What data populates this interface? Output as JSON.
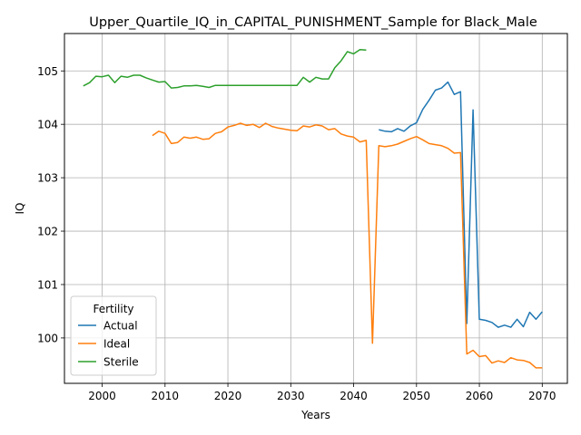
{
  "chart_data": {
    "type": "line",
    "title": "Upper_Quartile_IQ_in_CAPITAL_PUNISHMENT_Sample for Black_Male",
    "xlabel": "Years",
    "ylabel": "IQ",
    "xlim": [
      1994,
      2074
    ],
    "ylim": [
      99.15,
      105.7
    ],
    "xticks": [
      2000,
      2010,
      2020,
      2030,
      2040,
      2050,
      2060,
      2070
    ],
    "yticks": [
      100,
      101,
      102,
      103,
      104,
      105
    ],
    "grid": true,
    "legend": {
      "title": "Fertility",
      "position": "lower-left"
    },
    "series": [
      {
        "name": "Actual",
        "color": "#1f77b4",
        "x": [
          2044,
          2045,
          2046,
          2047,
          2048,
          2049,
          2050,
          2051,
          2052,
          2053,
          2054,
          2055,
          2056,
          2057,
          2058,
          2059,
          2060,
          2061,
          2062,
          2063,
          2064,
          2065,
          2066,
          2067,
          2068,
          2069,
          2070
        ],
        "y": [
          103.9,
          103.87,
          103.86,
          103.92,
          103.87,
          103.97,
          104.03,
          104.28,
          104.45,
          104.64,
          104.68,
          104.79,
          104.56,
          104.61,
          100.27,
          104.27,
          100.35,
          100.33,
          100.29,
          100.2,
          100.24,
          100.2,
          100.35,
          100.21,
          100.48,
          100.35,
          100.49
        ]
      },
      {
        "name": "Ideal",
        "color": "#ff7f0e",
        "x": [
          2008,
          2009,
          2010,
          2011,
          2012,
          2013,
          2014,
          2015,
          2016,
          2017,
          2018,
          2019,
          2020,
          2021,
          2022,
          2023,
          2024,
          2025,
          2026,
          2027,
          2028,
          2029,
          2030,
          2031,
          2032,
          2033,
          2034,
          2035,
          2036,
          2037,
          2038,
          2039,
          2040,
          2041,
          2042,
          2043,
          2044,
          2045,
          2046,
          2047,
          2048,
          2049,
          2050,
          2051,
          2052,
          2053,
          2054,
          2055,
          2056,
          2057,
          2058,
          2059,
          2060,
          2061,
          2062,
          2063,
          2064,
          2065,
          2066,
          2067,
          2068,
          2069,
          2070
        ],
        "y": [
          103.79,
          103.87,
          103.83,
          103.64,
          103.66,
          103.76,
          103.74,
          103.76,
          103.72,
          103.73,
          103.83,
          103.86,
          103.95,
          103.98,
          104.02,
          103.98,
          104.0,
          103.94,
          104.02,
          103.96,
          103.93,
          103.91,
          103.89,
          103.88,
          103.97,
          103.95,
          103.99,
          103.97,
          103.9,
          103.92,
          103.82,
          103.78,
          103.76,
          103.67,
          103.7,
          99.9,
          103.6,
          103.58,
          103.6,
          103.63,
          103.68,
          103.73,
          103.77,
          103.71,
          103.64,
          103.62,
          103.6,
          103.55,
          103.46,
          103.47,
          99.7,
          99.77,
          99.65,
          99.67,
          99.53,
          99.57,
          99.54,
          99.63,
          99.59,
          99.58,
          99.54,
          99.44,
          99.44
        ]
      },
      {
        "name": "Sterile",
        "color": "#2ca02c",
        "x": [
          1997,
          1998,
          1999,
          2000,
          2001,
          2002,
          2003,
          2004,
          2005,
          2006,
          2007,
          2008,
          2009,
          2010,
          2011,
          2012,
          2013,
          2014,
          2015,
          2016,
          2017,
          2018,
          2019,
          2020,
          2021,
          2022,
          2023,
          2024,
          2025,
          2026,
          2027,
          2028,
          2029,
          2030,
          2031,
          2032,
          2033,
          2034,
          2035,
          2036,
          2037,
          2038,
          2039,
          2040,
          2041,
          2042
        ],
        "y": [
          104.72,
          104.78,
          104.9,
          104.89,
          104.92,
          104.78,
          104.9,
          104.88,
          104.92,
          104.92,
          104.87,
          104.83,
          104.79,
          104.8,
          104.68,
          104.69,
          104.72,
          104.72,
          104.73,
          104.71,
          104.69,
          104.73,
          104.73,
          104.73,
          104.73,
          104.73,
          104.73,
          104.73,
          104.73,
          104.73,
          104.73,
          104.73,
          104.73,
          104.73,
          104.73,
          104.88,
          104.79,
          104.88,
          104.85,
          104.85,
          105.06,
          105.19,
          105.36,
          105.32,
          105.4,
          105.39
        ]
      }
    ]
  }
}
